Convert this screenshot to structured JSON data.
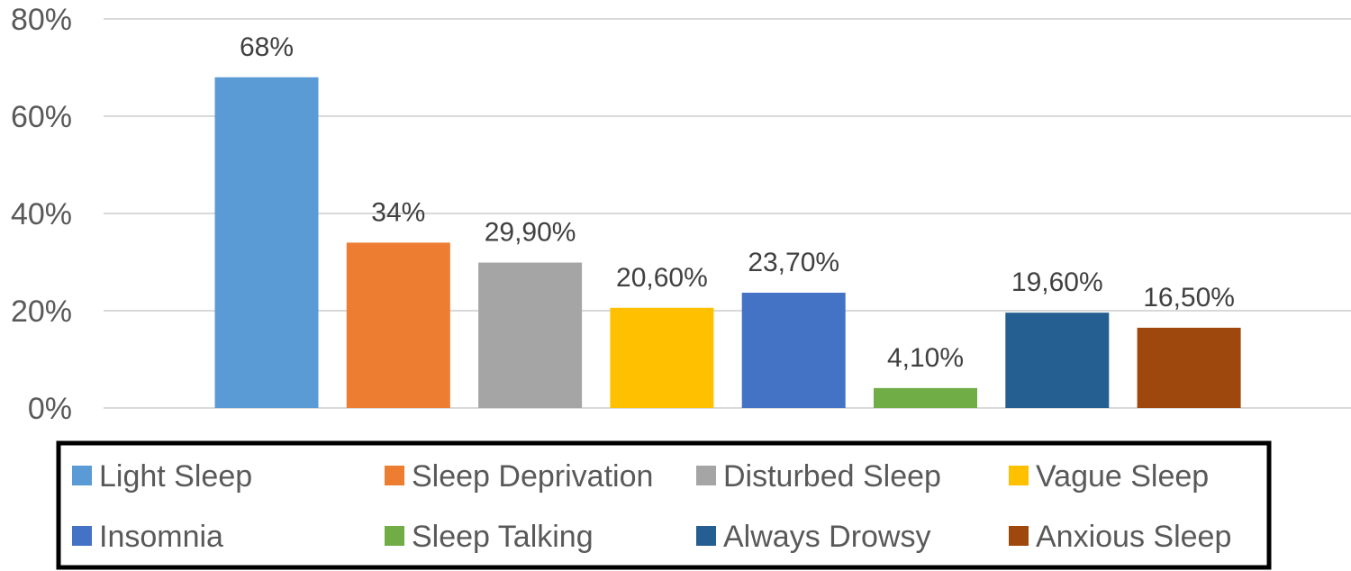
{
  "chart_data": {
    "type": "bar",
    "title": "",
    "xlabel": "",
    "ylabel": "",
    "ylim": [
      0,
      80
    ],
    "yticks": [
      {
        "value": 0,
        "label": "0%"
      },
      {
        "value": 20,
        "label": "20%"
      },
      {
        "value": 40,
        "label": "40%"
      },
      {
        "value": 60,
        "label": "60%"
      },
      {
        "value": 80,
        "label": "80%"
      }
    ],
    "grid": true,
    "legend_position": "bottom",
    "legend_border": true,
    "series": [
      {
        "name": "Light Sleep",
        "value": 68,
        "label": "68%",
        "color": "#5B9BD5"
      },
      {
        "name": "Sleep Deprivation",
        "value": 34,
        "label": "34%",
        "color": "#ED7D31"
      },
      {
        "name": "Disturbed Sleep",
        "value": 29.9,
        "label": "29,90%",
        "color": "#A5A5A5"
      },
      {
        "name": "Vague Sleep",
        "value": 20.6,
        "label": "20,60%",
        "color": "#FFC000"
      },
      {
        "name": "Insomnia",
        "value": 23.7,
        "label": "23,70%",
        "color": "#4472C4"
      },
      {
        "name": "Sleep Talking",
        "value": 4.1,
        "label": "4,10%",
        "color": "#70AD47"
      },
      {
        "name": "Always Drowsy",
        "value": 19.6,
        "label": "19,60%",
        "color": "#255E91"
      },
      {
        "name": "Anxious Sleep",
        "value": 16.5,
        "label": "16,50%",
        "color": "#9E480E"
      }
    ]
  }
}
